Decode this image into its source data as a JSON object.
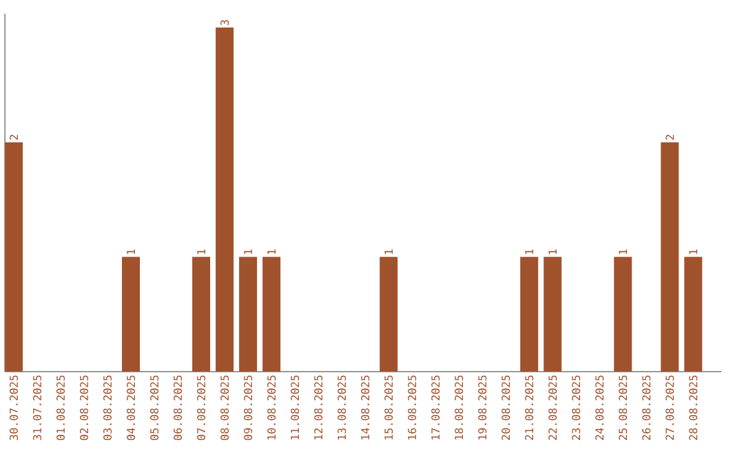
{
  "chart_data": {
    "type": "bar",
    "categories": [
      "30.07.2025",
      "31.07.2025",
      "01.08.2025",
      "02.08.2025",
      "03.08.2025",
      "04.08.2025",
      "05.08.2025",
      "06.08.2025",
      "07.08.2025",
      "08.08.2025",
      "09.08.2025",
      "10.08.2025",
      "11.08.2025",
      "12.08.2025",
      "13.08.2025",
      "14.08.2025",
      "15.08.2025",
      "16.08.2025",
      "17.08.2025",
      "18.08.2025",
      "19.08.2025",
      "20.08.2025",
      "21.08.2025",
      "22.08.2025",
      "23.08.2025",
      "24.08.2025",
      "25.08.2025",
      "26.08.2025",
      "27.08.2025",
      "28.08.2025"
    ],
    "values": [
      2,
      0,
      0,
      0,
      0,
      1,
      0,
      0,
      1,
      3,
      1,
      1,
      0,
      0,
      0,
      0,
      1,
      0,
      0,
      0,
      0,
      0,
      1,
      1,
      0,
      0,
      1,
      0,
      2,
      1
    ],
    "value_labels": [
      "2",
      null,
      null,
      null,
      null,
      "1",
      null,
      null,
      "1",
      "3",
      "1",
      "1",
      null,
      null,
      null,
      null,
      "1",
      null,
      null,
      null,
      null,
      null,
      "1",
      "1",
      null,
      null,
      "1",
      null,
      "2",
      "1"
    ],
    "color": "#a0522d"
  }
}
